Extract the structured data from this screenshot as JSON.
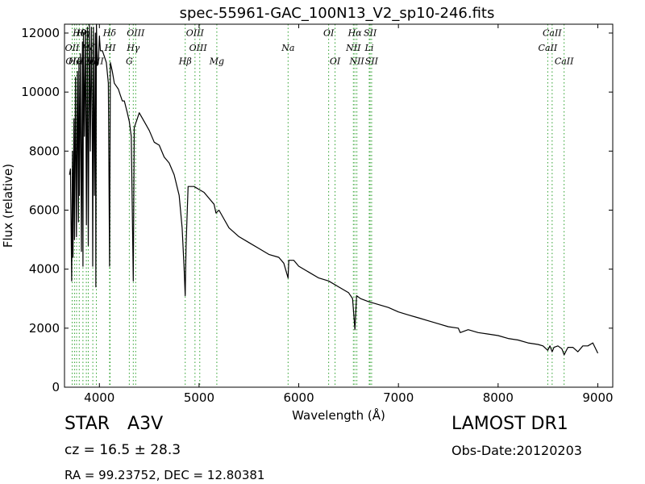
{
  "chart_data": {
    "type": "line",
    "title": "spec-55961-GAC_100N13_V2_sp10-246.fits",
    "xlabel": "Wavelength (Å)",
    "ylabel": "Flux (relative)",
    "xlim": [
      3650,
      9150
    ],
    "ylim": [
      0,
      12300
    ],
    "xticks": [
      4000,
      5000,
      6000,
      7000,
      8000,
      9000
    ],
    "yticks": [
      0,
      2000,
      4000,
      6000,
      8000,
      10000,
      12000
    ],
    "grid": false,
    "line_color": "#000000",
    "line_marker_color": "#2ca02c",
    "series": [
      {
        "x": [
          3700,
          3710,
          3722,
          3730,
          3735,
          3745,
          3750,
          3760,
          3770,
          3780,
          3790,
          3795,
          3800,
          3810,
          3820,
          3830,
          3835,
          3840,
          3850,
          3860,
          3870,
          3880,
          3889,
          3900,
          3910,
          3920,
          3930,
          3933,
          3940,
          3950,
          3960,
          3965,
          3970,
          3975,
          3980,
          3990,
          4000,
          4010,
          4030,
          4050,
          4070,
          4090,
          4102,
          4110,
          4130,
          4150,
          4170,
          4190,
          4210,
          4230,
          4250,
          4280,
          4300,
          4320,
          4340,
          4350,
          4360,
          4380,
          4400,
          4450,
          4500,
          4550,
          4600,
          4650,
          4700,
          4750,
          4800,
          4830,
          4850,
          4861,
          4870,
          4890,
          4920,
          4950,
          5000,
          5050,
          5100,
          5150,
          5170,
          5200,
          5250,
          5300,
          5400,
          5500,
          5600,
          5700,
          5800,
          5850,
          5893,
          5900,
          5950,
          6000,
          6100,
          6200,
          6300,
          6400,
          6500,
          6540,
          6563,
          6580,
          6620,
          6700,
          6800,
          6900,
          7000,
          7100,
          7200,
          7300,
          7400,
          7500,
          7600,
          7620,
          7700,
          7800,
          7900,
          8000,
          8100,
          8200,
          8300,
          8400,
          8450,
          8498,
          8520,
          8542,
          8560,
          8600,
          8640,
          8662,
          8700,
          8750,
          8800,
          8850,
          8900,
          8950,
          9000
        ],
        "y": [
          7200,
          7400,
          3600,
          8000,
          4400,
          9100,
          5000,
          10500,
          5100,
          10700,
          5600,
          11000,
          6500,
          11300,
          4600,
          11700,
          4100,
          12000,
          8500,
          12100,
          5500,
          12200,
          4800,
          12300,
          8000,
          12200,
          8000,
          4100,
          12200,
          6500,
          12000,
          3400,
          12300,
          11500,
          10900,
          11000,
          11900,
          11400,
          11400,
          11200,
          11000,
          10300,
          4100,
          11000,
          10700,
          10300,
          10200,
          10100,
          9900,
          9700,
          9700,
          9300,
          9000,
          8500,
          3600,
          8800,
          8900,
          9100,
          9300,
          9000,
          8700,
          8300,
          8200,
          7800,
          7600,
          7200,
          6500,
          5400,
          4000,
          3100,
          4800,
          6800,
          6800,
          6800,
          6700,
          6600,
          6400,
          6200,
          5900,
          6000,
          5700,
          5400,
          5100,
          4900,
          4700,
          4500,
          4400,
          4200,
          3700,
          4300,
          4300,
          4100,
          3900,
          3700,
          3600,
          3400,
          3200,
          3000,
          1950,
          3100,
          3000,
          2900,
          2800,
          2700,
          2550,
          2450,
          2350,
          2250,
          2150,
          2050,
          2000,
          1850,
          1950,
          1850,
          1800,
          1750,
          1650,
          1600,
          1500,
          1450,
          1400,
          1250,
          1400,
          1200,
          1350,
          1400,
          1300,
          1100,
          1350,
          1350,
          1200,
          1400,
          1400,
          1500,
          1150
        ]
      }
    ],
    "lines_x": [
      3727,
      3750,
      3771,
      3798,
      3835,
      3869,
      3889,
      3934,
      3970,
      4102,
      4108,
      4300,
      4340,
      4364,
      4861,
      4959,
      5007,
      5178,
      5893,
      6300,
      6364,
      6548,
      6563,
      6583,
      6707,
      6716,
      6731,
      8498,
      8542,
      8662
    ],
    "annotations": [
      {
        "text": "Hθ",
        "x": 3798,
        "y": 11900
      },
      {
        "text": "Hη",
        "x": 3835,
        "y": 11900
      },
      {
        "text": "Hδ",
        "x": 4102,
        "y": 11900
      },
      {
        "text": "OIII",
        "x": 4364,
        "y": 11900
      },
      {
        "text": "OIII",
        "x": 4959,
        "y": 11900
      },
      {
        "text": "OI",
        "x": 6300,
        "y": 11900
      },
      {
        "text": "Hα",
        "x": 6563,
        "y": 11900
      },
      {
        "text": "SII",
        "x": 6716,
        "y": 11900
      },
      {
        "text": "CaII",
        "x": 8542,
        "y": 11900
      },
      {
        "text": "OII",
        "x": 3727,
        "y": 11400
      },
      {
        "text": "Hζ",
        "x": 3889,
        "y": 11400
      },
      {
        "text": "HI",
        "x": 4108,
        "y": 11400
      },
      {
        "text": "Hγ",
        "x": 4340,
        "y": 11400
      },
      {
        "text": "OIII",
        "x": 4990,
        "y": 11400
      },
      {
        "text": "Na",
        "x": 5893,
        "y": 11400
      },
      {
        "text": "NII",
        "x": 6548,
        "y": 11400
      },
      {
        "text": "Li",
        "x": 6707,
        "y": 11400
      },
      {
        "text": "CaII",
        "x": 8498,
        "y": 11400
      },
      {
        "text": "OIII",
        "x": 3750,
        "y": 10950
      },
      {
        "text": "HeI",
        "x": 3771,
        "y": 10950
      },
      {
        "text": "Hϵ",
        "x": 3934,
        "y": 10950
      },
      {
        "text": "HII",
        "x": 3970,
        "y": 10950
      },
      {
        "text": "G",
        "x": 4300,
        "y": 10950
      },
      {
        "text": "Hβ",
        "x": 4861,
        "y": 10950
      },
      {
        "text": "Mg",
        "x": 5178,
        "y": 10950
      },
      {
        "text": "OI",
        "x": 6364,
        "y": 10950
      },
      {
        "text": "NII",
        "x": 6583,
        "y": 10950
      },
      {
        "text": "SII",
        "x": 6731,
        "y": 10950
      },
      {
        "text": "CaII",
        "x": 8662,
        "y": 10950
      }
    ]
  },
  "info": {
    "object_class": "STAR",
    "subclass": "A3V",
    "survey": "LAMOST DR1",
    "redshift": "cz = 16.5 ± 28.3",
    "obs_date": "Obs-Date:20120203",
    "coords": "RA = 99.23752, DEC = 12.80381"
  }
}
